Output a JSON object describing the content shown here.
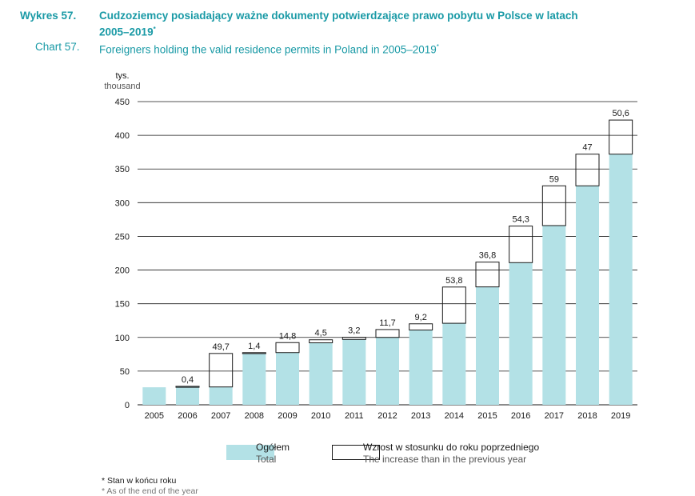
{
  "header": {
    "pl_number": "Wykres 57.",
    "pl_title_line1": "Cudzoziemcy posiadający ważne dokumenty potwierdzające prawo pobytu w Polsce w latach",
    "pl_title_line2": "2005–2019",
    "pl_title_mark": "*",
    "en_number": "Chart 57.",
    "en_title": "Foreigners holding the valid residence permits in Poland in 2005–2019",
    "en_title_mark": "*"
  },
  "legend": {
    "total_pl": "Ogółem",
    "total_en": "Total",
    "increase_pl": "Wzrost w stosunku do roku poprzedniego",
    "increase_en": "The increase than in the previous year"
  },
  "footnotes": {
    "pl": "* Stan w końcu roku",
    "en": "* As of the end of the year"
  },
  "colors": {
    "total": "#b3e1e6",
    "increase": "#ffffff",
    "grid": "#1a1a1a",
    "title": "#1a9aa6"
  },
  "chart_data": {
    "type": "bar",
    "stacked": true,
    "ylabel_pl": "tys.",
    "ylabel_en": "thousand",
    "ylim": [
      0,
      450
    ],
    "yticks": [
      0,
      50,
      100,
      150,
      200,
      250,
      300,
      350,
      400,
      450
    ],
    "grid": true,
    "legend_position": "bottom",
    "categories": [
      "2005",
      "2006",
      "2007",
      "2008",
      "2009",
      "2010",
      "2011",
      "2012",
      "2013",
      "2014",
      "2015",
      "2016",
      "2017",
      "2018",
      "2019"
    ],
    "series": [
      {
        "name": "Ogółem / Total",
        "values": [
          26,
          26,
          26.5,
          76,
          77.5,
          92,
          97,
          100,
          111,
          121,
          175,
          211,
          266,
          325,
          372
        ]
      },
      {
        "name": "Wzrost w stosunku do roku poprzedniego / The increase than in the previous year",
        "values": [
          null,
          0.4,
          49.7,
          1.4,
          14.8,
          4.5,
          3.2,
          11.7,
          9.2,
          53.8,
          36.8,
          54.3,
          59,
          47,
          50.6
        ]
      }
    ],
    "data_labels": [
      "",
      "0,4",
      "49,7",
      "1,4",
      "14,8",
      "4,5",
      "3,2",
      "11,7",
      "9,2",
      "53,8",
      "36,8",
      "54,3",
      "59",
      "47",
      "50,6"
    ]
  }
}
